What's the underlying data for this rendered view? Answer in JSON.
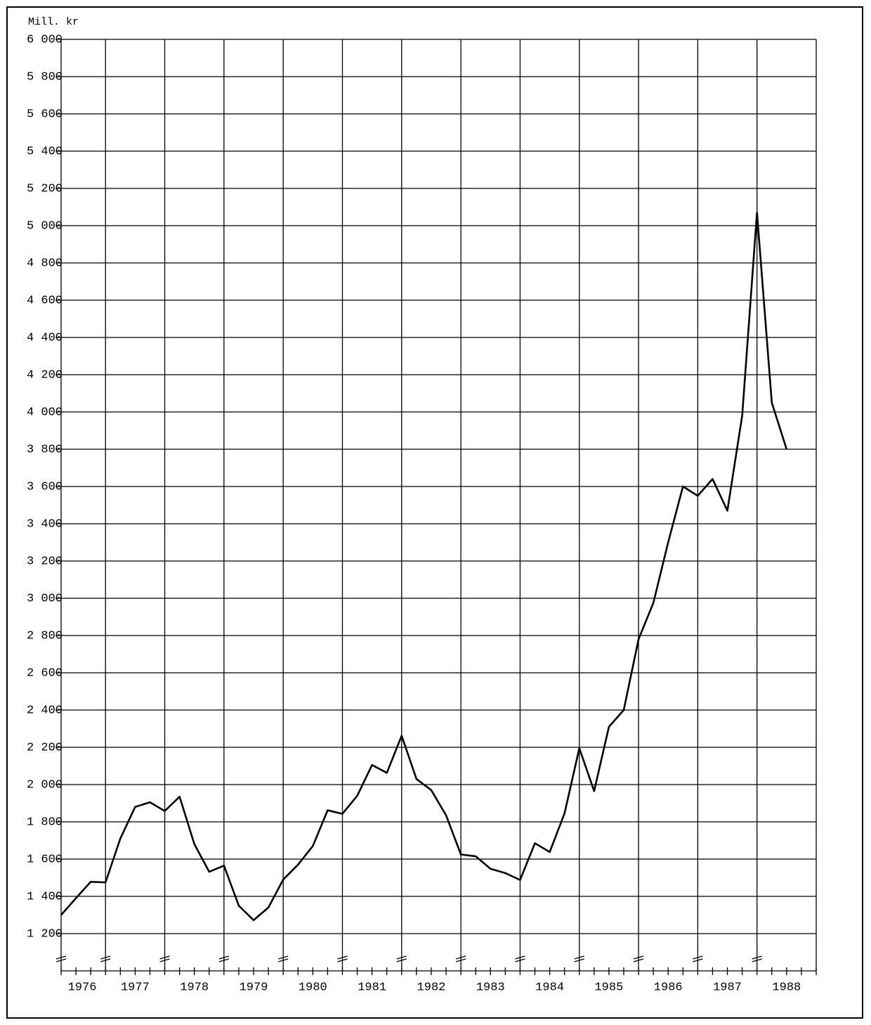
{
  "chart_data": {
    "type": "line",
    "y_label": "Mill. kr",
    "x": [
      1976.25,
      1976.5,
      1976.75,
      1977,
      1977.25,
      1977.5,
      1977.75,
      1978,
      1978.25,
      1978.5,
      1978.75,
      1979,
      1979.25,
      1979.5,
      1979.75,
      1980,
      1980.25,
      1980.5,
      1980.75,
      1981,
      1981.25,
      1981.5,
      1981.75,
      1982,
      1982.25,
      1982.5,
      1982.75,
      1983,
      1983.25,
      1983.5,
      1983.75,
      1984,
      1984.25,
      1984.5,
      1984.75,
      1985,
      1985.25,
      1985.5,
      1985.75,
      1986,
      1986.25,
      1986.5,
      1986.75,
      1987,
      1987.25,
      1987.5,
      1987.75,
      1988,
      1988.25,
      1988.5
    ],
    "series": [
      {
        "color": "#000000",
        "values": [
          1300,
          1390,
          1478,
          1475,
          1710,
          1880,
          1905,
          1858,
          1935,
          1680,
          1532,
          1565,
          1350,
          1272,
          1340,
          1490,
          1570,
          1670,
          1862,
          1843,
          1940,
          2105,
          2063,
          2262,
          2030,
          1970,
          1835,
          1625,
          1615,
          1548,
          1525,
          1488,
          1685,
          1638,
          1845,
          2195,
          1965,
          2310,
          2400,
          2780,
          2975,
          3300,
          3600,
          3550,
          3640,
          3470,
          3980,
          5070,
          4050,
          3800
        ]
      }
    ],
    "xlim": [
      1976.25,
      1989
    ],
    "xticks": [
      {
        "value": 1976,
        "label": "1976"
      },
      {
        "value": 1977,
        "label": "1977"
      },
      {
        "value": 1978,
        "label": "1978"
      },
      {
        "value": 1979,
        "label": "1979"
      },
      {
        "value": 1980,
        "label": "1980"
      },
      {
        "value": 1981,
        "label": "1981"
      },
      {
        "value": 1982,
        "label": "1982"
      },
      {
        "value": 1983,
        "label": "1983"
      },
      {
        "value": 1984,
        "label": "1984"
      },
      {
        "value": 1985,
        "label": "1985"
      },
      {
        "value": 1986,
        "label": "1986"
      },
      {
        "value": 1987,
        "label": "1987"
      },
      {
        "value": 1988,
        "label": "1988"
      }
    ],
    "ylim": [
      1000,
      6000
    ],
    "yticks": [
      {
        "value": 1200,
        "label": "1 200"
      },
      {
        "value": 1400,
        "label": "1 400"
      },
      {
        "value": 1600,
        "label": "1 600"
      },
      {
        "value": 1800,
        "label": "1 800"
      },
      {
        "value": 2000,
        "label": "2 000"
      },
      {
        "value": 2200,
        "label": "2 200"
      },
      {
        "value": 2400,
        "label": "2 400"
      },
      {
        "value": 2600,
        "label": "2 600"
      },
      {
        "value": 2800,
        "label": "2 800"
      },
      {
        "value": 3000,
        "label": "3 000"
      },
      {
        "value": 3200,
        "label": "3 200"
      },
      {
        "value": 3400,
        "label": "3 400"
      },
      {
        "value": 3600,
        "label": "3 600"
      },
      {
        "value": 3800,
        "label": "3 800"
      },
      {
        "value": 4000,
        "label": "4 000"
      },
      {
        "value": 4200,
        "label": "4 200"
      },
      {
        "value": 4400,
        "label": "4 400"
      },
      {
        "value": 4600,
        "label": "4 600"
      },
      {
        "value": 4800,
        "label": "4 800"
      },
      {
        "value": 5000,
        "label": "5 000"
      },
      {
        "value": 5200,
        "label": "5 200"
      },
      {
        "value": 5400,
        "label": "5 400"
      },
      {
        "value": 5600,
        "label": "5 600"
      },
      {
        "value": 5800,
        "label": "5 800"
      },
      {
        "value": 6000,
        "label": "6 000"
      }
    ],
    "grid": true
  }
}
